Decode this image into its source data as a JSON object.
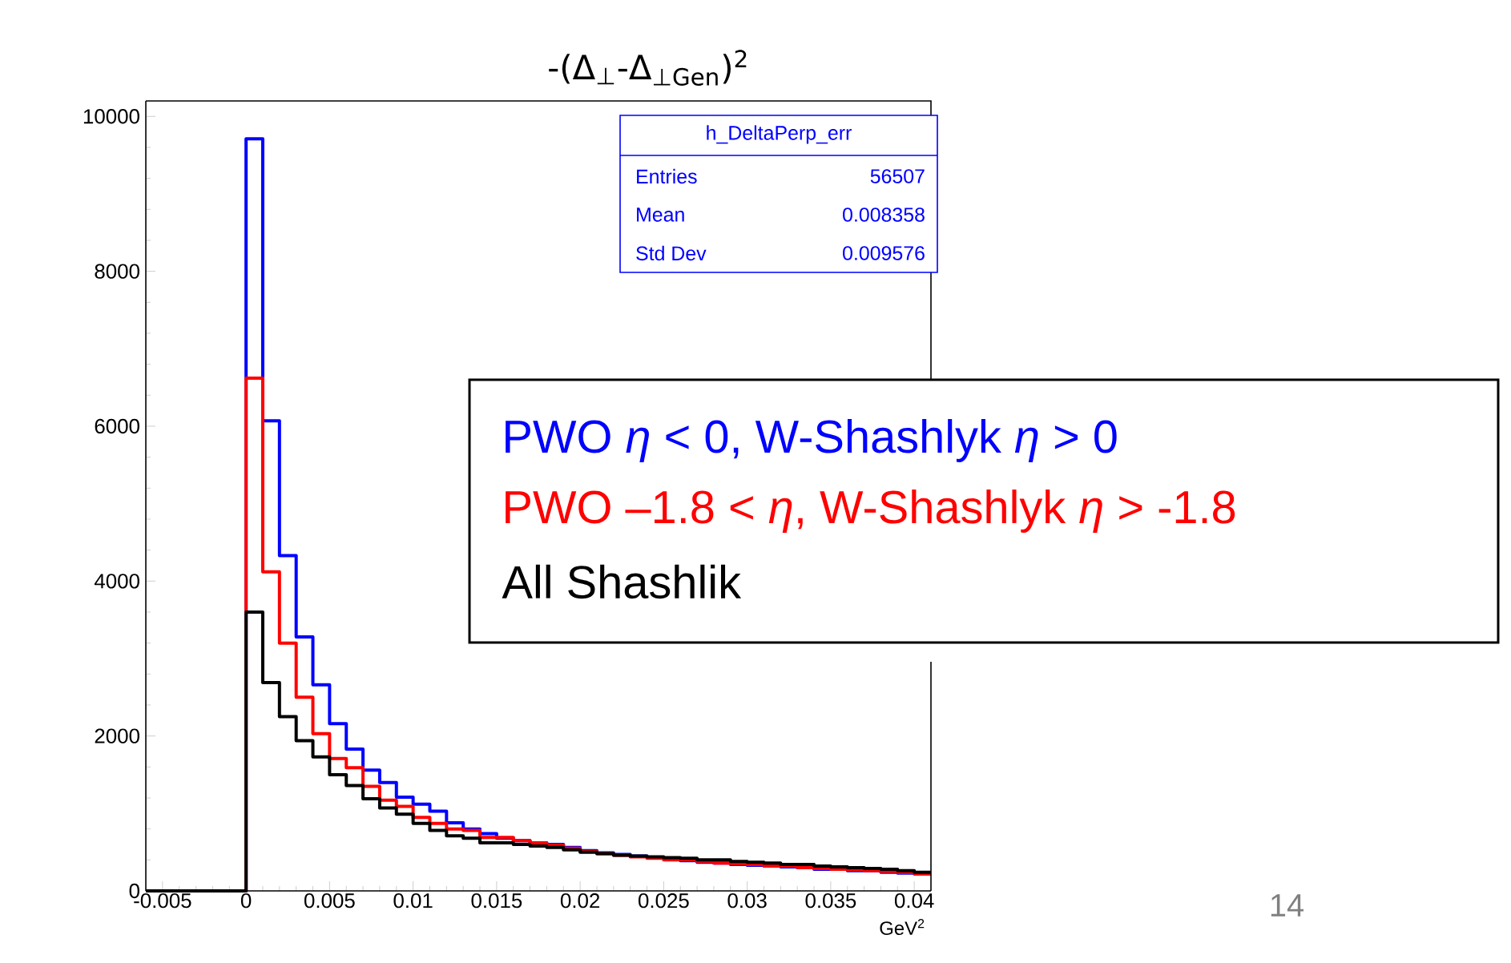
{
  "chart_data": {
    "type": "histogram",
    "title": "-(Δ$_{⊥}$-Δ$_{⊥Gen}$)$^{2}$",
    "xlabel": "GeV$^{2}$",
    "bins": [
      -0.006,
      -0.005,
      -0.004,
      -0.003,
      -0.002,
      -0.001,
      0,
      0.001,
      0.002,
      0.003,
      0.004,
      0.005,
      0.006,
      0.007,
      0.008,
      0.009,
      0.01,
      0.011,
      0.012,
      0.013,
      0.014,
      0.015,
      0.016,
      0.017,
      0.018,
      0.019,
      0.02,
      0.021,
      0.022,
      0.023,
      0.024,
      0.025,
      0.026,
      0.027,
      0.028,
      0.029,
      0.03,
      0.031,
      0.032,
      0.033,
      0.034,
      0.035,
      0.036,
      0.037,
      0.038,
      0.039,
      0.04,
      0.041
    ],
    "series": [
      {
        "name": "PWO *η* < 0, W-Shashlyk *η* > 0",
        "color": "#0000ff",
        "values": [
          0,
          0,
          0,
          0,
          0,
          0,
          9710,
          6070,
          4330,
          3280,
          2660,
          2160,
          1830,
          1560,
          1400,
          1210,
          1120,
          1030,
          880,
          800,
          740,
          680,
          650,
          620,
          600,
          560,
          520,
          490,
          470,
          450,
          430,
          410,
          390,
          370,
          360,
          340,
          330,
          320,
          310,
          300,
          280,
          280,
          260,
          260,
          240,
          230,
          220
        ]
      },
      {
        "name": "PWO –1.8 < *η*, W-Shashlyk *η* > -1.8",
        "color": "#ff0000",
        "values": [
          0,
          0,
          0,
          0,
          0,
          0,
          6620,
          4120,
          3200,
          2500,
          2030,
          1710,
          1590,
          1350,
          1170,
          1090,
          950,
          870,
          800,
          780,
          690,
          690,
          650,
          620,
          590,
          550,
          510,
          480,
          460,
          440,
          420,
          400,
          400,
          380,
          360,
          350,
          340,
          320,
          320,
          300,
          290,
          280,
          270,
          260,
          250,
          240,
          220
        ]
      },
      {
        "name": "All Shashlik",
        "color": "#000000",
        "values": [
          0,
          0,
          0,
          0,
          0,
          0,
          3600,
          2690,
          2250,
          1940,
          1730,
          1500,
          1360,
          1190,
          1070,
          990,
          870,
          780,
          710,
          680,
          620,
          620,
          600,
          580,
          560,
          530,
          500,
          480,
          460,
          450,
          440,
          430,
          420,
          400,
          400,
          380,
          370,
          360,
          340,
          340,
          320,
          310,
          300,
          290,
          280,
          260,
          240
        ]
      }
    ],
    "xlim": [
      -0.006,
      0.041
    ],
    "ylim": [
      0,
      10200
    ],
    "xticks": [
      -0.005,
      0,
      0.005,
      0.01,
      0.015,
      0.02,
      0.025,
      0.03,
      0.035,
      0.04
    ],
    "yticks": [
      0,
      2000,
      4000,
      6000,
      8000,
      10000
    ],
    "grid": false,
    "legend": "right",
    "annotations": [
      "h_DeltaPerp_err",
      "Entries",
      "56507",
      "Mean",
      "0.008358",
      "Std Dev",
      "0.009576",
      "14"
    ]
  }
}
